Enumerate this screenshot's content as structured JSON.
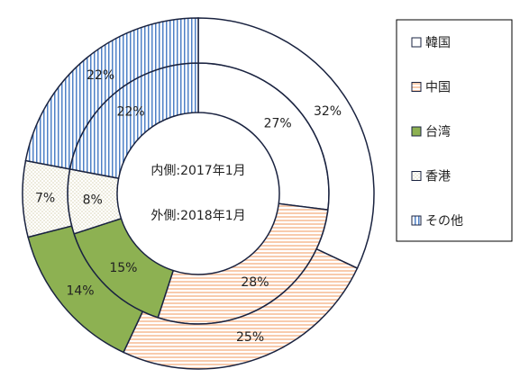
{
  "chart_data": {
    "type": "donut",
    "categories": [
      "韓国",
      "中国",
      "台湾",
      "香港",
      "その他"
    ],
    "colors": [
      "#ffffff",
      "#f8cbad",
      "#8db152",
      "#d9d4b5",
      "#4f81c7"
    ],
    "patterns": [
      "solid",
      "hstripe",
      "solid",
      "dots",
      "vstripe"
    ],
    "series": [
      {
        "name": "内側:2017年1月",
        "values": [
          27,
          28,
          15,
          8,
          22
        ],
        "value_labels": [
          "27%",
          "28%",
          "15%",
          "8%",
          "22%"
        ]
      },
      {
        "name": "外側:2018年1月",
        "values": [
          32,
          25,
          14,
          7,
          22
        ],
        "value_labels": [
          "32%",
          "25%",
          "14%",
          "7%",
          "22%"
        ]
      }
    ],
    "legend": "right"
  }
}
